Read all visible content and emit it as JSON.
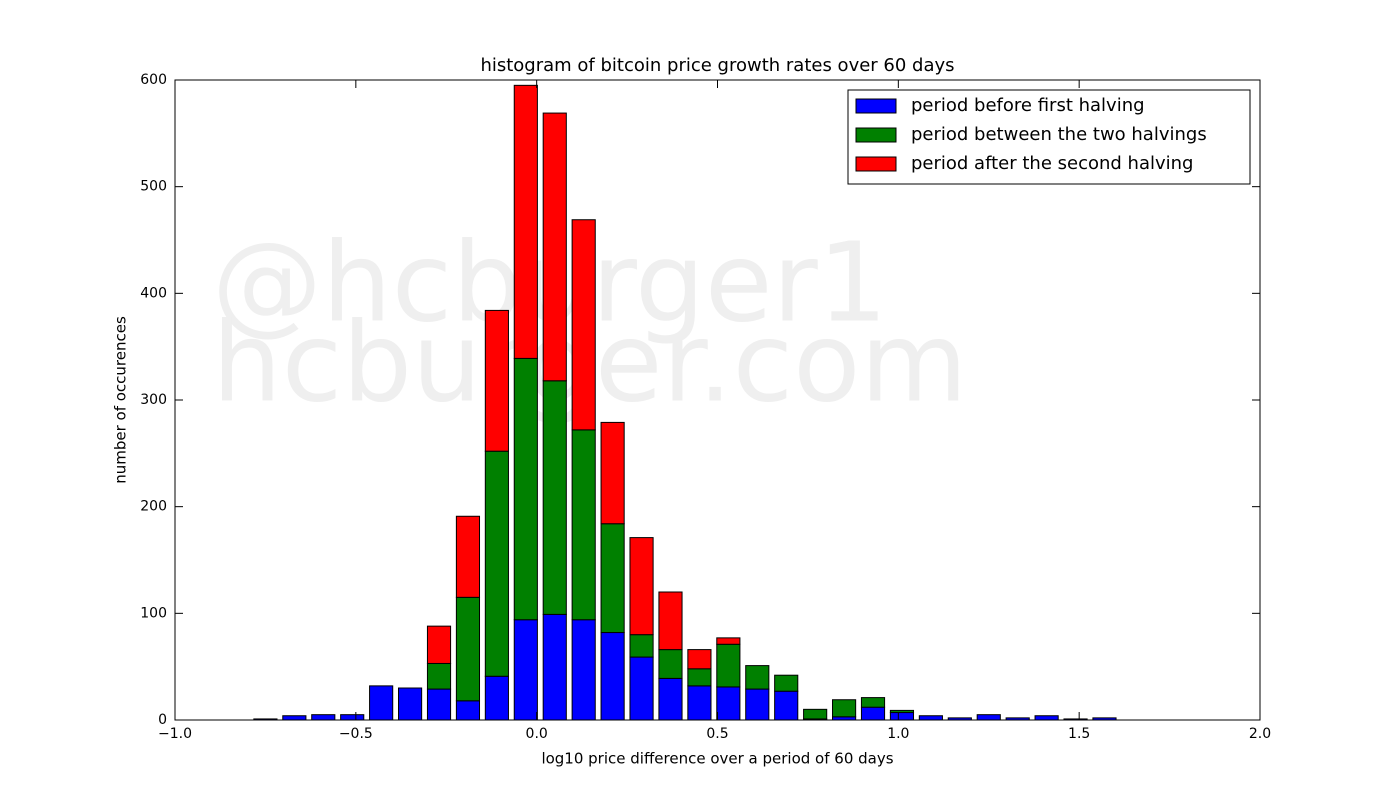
{
  "chart_data": {
    "type": "histogram",
    "title": "histogram of bitcoin price growth rates over 60 days",
    "x_label": "log10 price difference over a period of 60 days",
    "y_label": "number of occurences",
    "watermark": [
      "@hcburger1",
      "hcburger.com"
    ],
    "stacked": true,
    "legend": "upper right",
    "bins": [
      -0.79,
      -0.71,
      -0.63,
      -0.55,
      -0.47,
      -0.39,
      -0.31,
      -0.23,
      -0.15,
      -0.07,
      0.01,
      0.09,
      0.17,
      0.25,
      0.33,
      0.41,
      0.49,
      0.57,
      0.65,
      0.73,
      0.81,
      0.89,
      0.97,
      1.05,
      1.13,
      1.21,
      1.29,
      1.37,
      1.45,
      1.53,
      1.61
    ],
    "series": [
      {
        "name": "period before first halving",
        "color": "#0000ff",
        "values": [
          1,
          4,
          5,
          5,
          32,
          30,
          29,
          18,
          41,
          94,
          99,
          94,
          82,
          59,
          39,
          32,
          31,
          29,
          27,
          1,
          3,
          12,
          7,
          4,
          2,
          5,
          2,
          4,
          1,
          2
        ]
      },
      {
        "name": "period between the two halvings",
        "color": "#008000",
        "values": [
          0,
          0,
          0,
          0,
          0,
          0,
          24,
          97,
          211,
          245,
          219,
          178,
          102,
          21,
          27,
          16,
          40,
          22,
          15,
          9,
          16,
          9,
          2,
          0,
          0,
          0,
          0,
          0,
          0,
          0
        ]
      },
      {
        "name": "period after the second halving",
        "color": "#ff0000",
        "values": [
          0,
          0,
          0,
          0,
          0,
          0,
          35,
          76,
          132,
          256,
          251,
          197,
          95,
          91,
          54,
          18,
          6,
          0,
          0,
          0,
          0,
          0,
          0,
          0,
          0,
          0,
          0,
          0,
          0,
          0
        ]
      }
    ],
    "xlim": [
      -1.0,
      2.0
    ],
    "xticks": [
      {
        "value": -1.0,
        "label": "−1.0"
      },
      {
        "value": -0.5,
        "label": "−0.5"
      },
      {
        "value": 0,
        "label": "0.0"
      },
      0.5,
      {
        "value": 1.0,
        "label": "1.0"
      },
      1.5,
      {
        "value": 2.0,
        "label": "2.0"
      }
    ],
    "ylim": [
      0,
      600
    ],
    "yticks": [
      0,
      100,
      200,
      300,
      400,
      500,
      600
    ]
  }
}
